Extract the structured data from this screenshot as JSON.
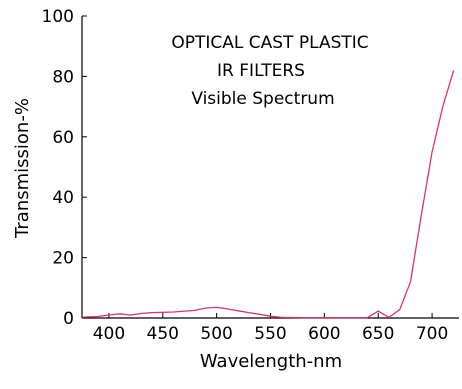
{
  "chart_data": {
    "type": "line",
    "title_lines": [
      "OPTICAL CAST PLASTIC",
      "IR FILTERS",
      "Visible Spectrum"
    ],
    "xlabel": "Wavelength-nm",
    "ylabel": "Transmission-%",
    "xlim": [
      375,
      725
    ],
    "ylim": [
      0,
      100
    ],
    "xticks": [
      400,
      450,
      500,
      550,
      600,
      650,
      700
    ],
    "yticks": [
      0,
      20,
      40,
      60,
      80,
      100
    ],
    "grid": false,
    "legend": "none",
    "series": [
      {
        "color": "#e0306a",
        "x": [
          375,
          390,
          400,
          410,
          420,
          430,
          440,
          460,
          480,
          490,
          500,
          510,
          520,
          530,
          540,
          550,
          560,
          580,
          600,
          620,
          640,
          650,
          660,
          670,
          680,
          690,
          700,
          710,
          720
        ],
        "y": [
          0.3,
          0.5,
          1.0,
          1.4,
          1.0,
          1.5,
          1.8,
          2.0,
          2.5,
          3.3,
          3.5,
          3.0,
          2.4,
          1.8,
          1.2,
          0.6,
          0.2,
          0.1,
          0.1,
          0.1,
          0.1,
          2.3,
          0.2,
          2.8,
          12,
          34,
          55,
          70,
          82
        ]
      }
    ]
  }
}
